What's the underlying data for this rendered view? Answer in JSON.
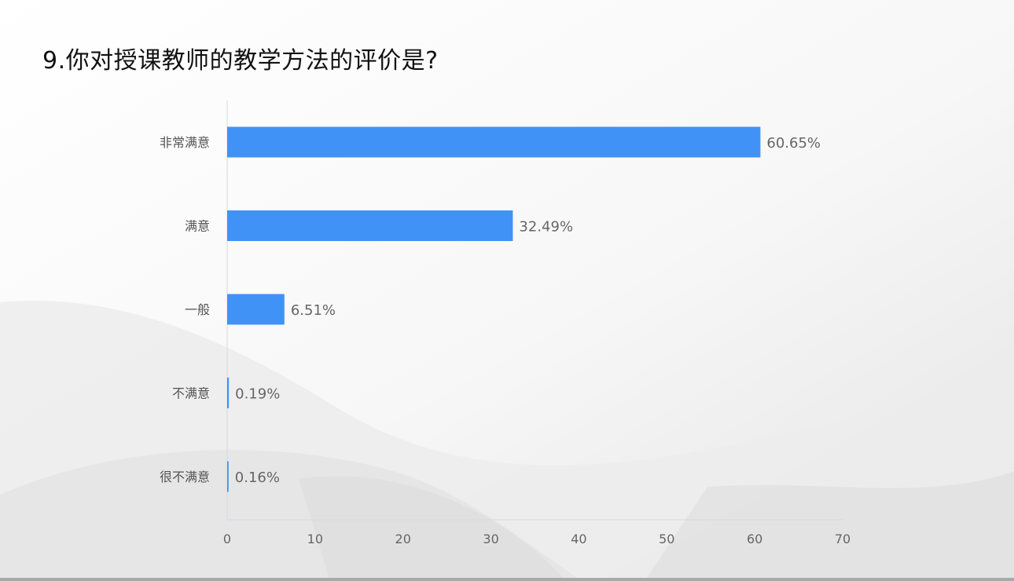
{
  "title": "9.你对授课教师的教学方法的评价是?",
  "chart_data": {
    "type": "bar",
    "orientation": "horizontal",
    "title": "9.你对授课教师的教学方法的评价是?",
    "categories": [
      "非常满意",
      "满意",
      "一般",
      "不满意",
      "很不满意"
    ],
    "values": [
      60.65,
      32.49,
      6.51,
      0.19,
      0.16
    ],
    "value_labels": [
      "60.65%",
      "32.49%",
      "6.51%",
      "0.19%",
      "0.16%"
    ],
    "xticks": [
      "0",
      "10",
      "20",
      "30",
      "40",
      "50",
      "60",
      "70"
    ],
    "xlim": [
      0,
      70
    ],
    "xlabel": "",
    "ylabel": "",
    "grid": false,
    "bar_color": "#4192f6",
    "axis_color": "#d6d6e6"
  }
}
